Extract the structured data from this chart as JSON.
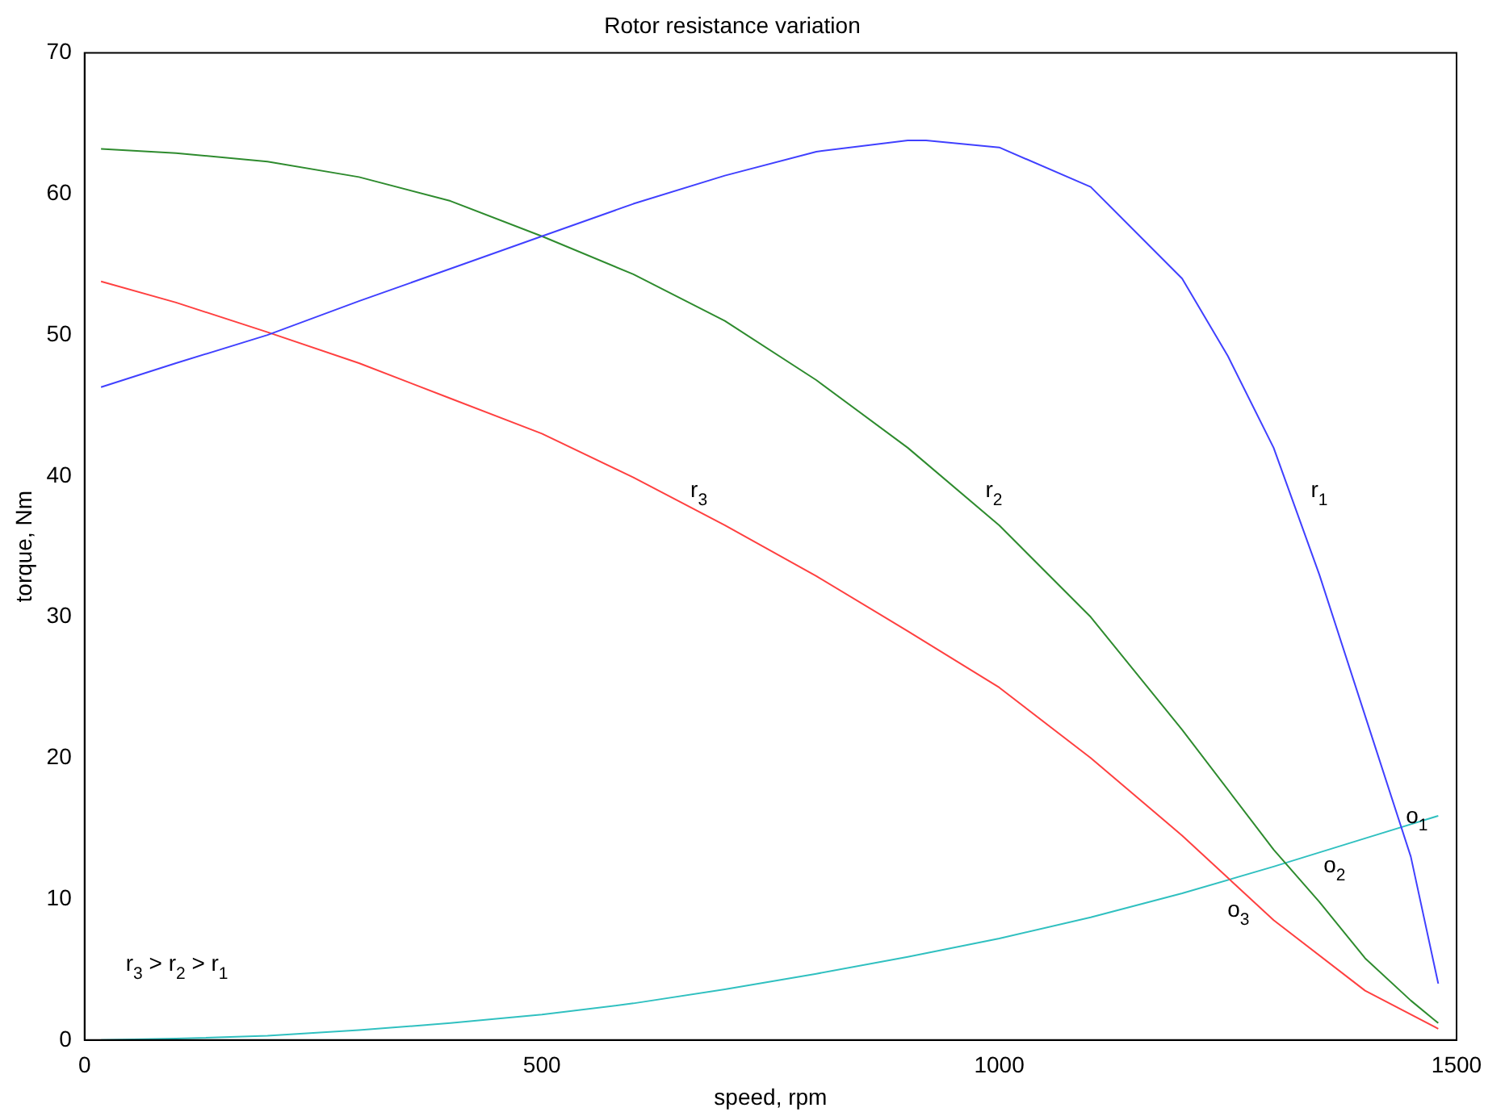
{
  "chart_data": {
    "type": "line",
    "title": "Rotor resistance variation",
    "xlabel": "speed, rpm",
    "ylabel": "torque, Nm",
    "xlim": [
      0,
      1500
    ],
    "xticks": [
      0,
      500,
      1000,
      1500
    ],
    "ylim": [
      0,
      70
    ],
    "yticks": [
      0,
      10,
      20,
      30,
      40,
      50,
      60,
      70
    ],
    "grid": false,
    "legend": false,
    "marker": "none",
    "line_style": "solid",
    "series": [
      {
        "name": "r$_{1}$",
        "color": "#4040ff",
        "x": [
          18,
          100,
          200,
          300,
          400,
          500,
          600,
          700,
          800,
          900,
          920,
          1000,
          1100,
          1200,
          1250,
          1300,
          1350,
          1400,
          1450,
          1480
        ],
        "values": [
          46.3,
          48,
          50,
          52.4,
          54.7,
          57,
          59.3,
          61.3,
          63,
          63.8,
          63.8,
          63.3,
          60.5,
          54,
          48.5,
          42,
          33,
          23,
          13,
          4
        ]
      },
      {
        "name": "r$_{2}$",
        "color": "#2e8b2e",
        "x": [
          18,
          100,
          200,
          300,
          400,
          500,
          600,
          700,
          800,
          900,
          1000,
          1100,
          1200,
          1300,
          1350,
          1400,
          1450,
          1480
        ],
        "values": [
          63.2,
          62.9,
          62.3,
          61.2,
          59.5,
          57,
          54.3,
          51,
          46.8,
          42,
          36.5,
          30,
          22,
          13.5,
          9.8,
          5.8,
          2.8,
          1.2
        ]
      },
      {
        "name": "r$_{3}$",
        "color": "#ff4040",
        "x": [
          18,
          100,
          200,
          300,
          400,
          500,
          600,
          700,
          800,
          900,
          1000,
          1100,
          1200,
          1300,
          1400,
          1480
        ],
        "values": [
          53.8,
          52.3,
          50.2,
          48,
          45.5,
          43,
          39.9,
          36.5,
          32.9,
          29,
          25,
          20,
          14.5,
          8.5,
          3.5,
          0.8
        ]
      },
      {
        "color": "#30c0c0",
        "x": [
          18,
          100,
          200,
          300,
          400,
          500,
          600,
          700,
          800,
          900,
          1000,
          1100,
          1200,
          1300,
          1400,
          1480
        ],
        "values": [
          0,
          0.1,
          0.3,
          0.7,
          1.2,
          1.8,
          2.6,
          3.6,
          4.7,
          5.9,
          7.2,
          8.7,
          10.4,
          12.3,
          14.3,
          15.9
        ]
      }
    ],
    "annotations": [
      "o$_{1}$",
      "o$_{2}$",
      "o$_{3}$",
      "r$_{3}$ > r$_{2}$ > r$_{1}$"
    ]
  }
}
